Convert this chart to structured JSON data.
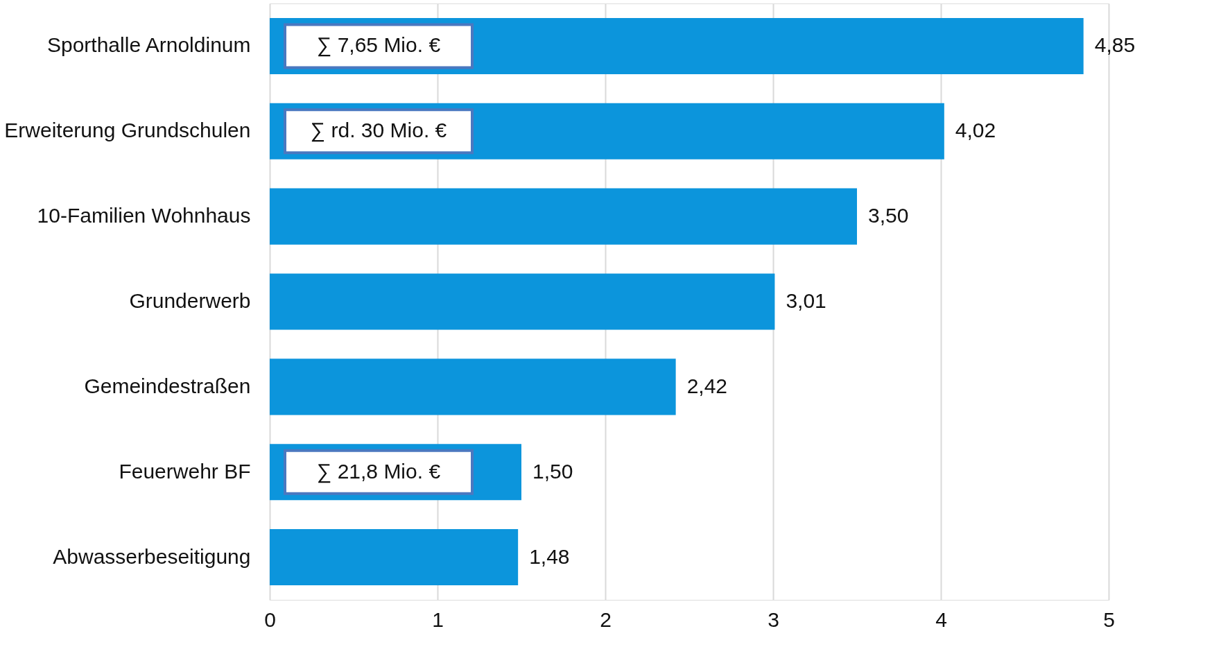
{
  "chart_data": {
    "type": "bar",
    "orientation": "horizontal",
    "categories": [
      "Sporthalle Arnoldinum",
      "Erweiterung Grundschulen",
      "10-Familien Wohnhaus",
      "Grunderwerb",
      "Gemeindestraßen",
      "Feuerwehr BF",
      "Abwasserbeseitigung"
    ],
    "values": [
      4.85,
      4.02,
      3.5,
      3.01,
      2.42,
      1.5,
      1.48
    ],
    "value_labels": [
      "4,85",
      "4,02",
      "3,50",
      "3,01",
      "2,42",
      "1,50",
      "1,48"
    ],
    "color": "#0c95dc",
    "xlim": [
      0,
      5
    ],
    "xticks": [
      0,
      1,
      2,
      3,
      4,
      5
    ],
    "grid": "x",
    "annotations": [
      "∑ 7,65 Mio. €",
      "∑ rd. 30 Mio. €",
      "∑ 21,8 Mio. €"
    ]
  }
}
